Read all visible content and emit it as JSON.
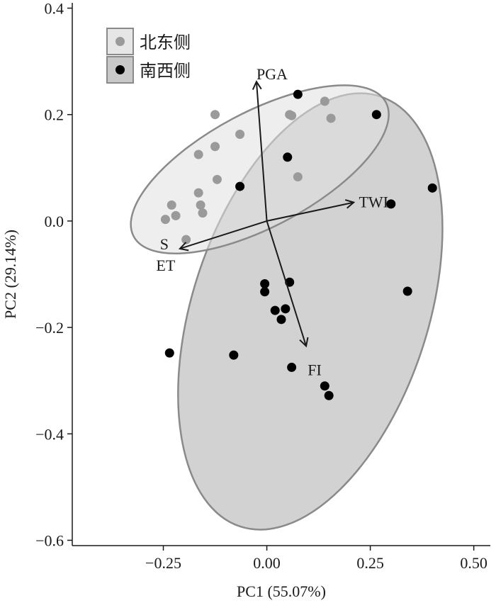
{
  "chart_data": {
    "type": "scatter",
    "title": "",
    "xlabel": "PC1 (55.07%)",
    "ylabel": "PC2 (29.14%)",
    "xlim": [
      -0.47,
      0.54
    ],
    "ylim": [
      -0.61,
      0.41
    ],
    "xticks": [
      -0.25,
      0.0,
      0.25,
      0.5
    ],
    "xtick_labels": [
      "−0.25",
      "0.00",
      "0.25",
      "0.50"
    ],
    "yticks": [
      0.4,
      0.2,
      0.0,
      -0.2,
      -0.4,
      -0.6
    ],
    "ytick_labels": [
      "0.4",
      "0.2",
      "0.0",
      "−0.2",
      "−0.4",
      "−0.6"
    ],
    "grid": false,
    "legend_position": "top-left",
    "series": [
      {
        "name": "北东侧",
        "color": "#9a9a9a",
        "ellipse": {
          "cx": -0.017,
          "cy": 0.097,
          "rx": 0.345,
          "ry": 0.108,
          "angle_deg": -28,
          "fill": "#e0e0e0",
          "stroke": "#8a8a8a"
        },
        "points": [
          [
            -0.125,
            0.2
          ],
          [
            -0.165,
            0.125
          ],
          [
            -0.125,
            0.14
          ],
          [
            -0.065,
            0.163
          ],
          [
            -0.12,
            0.078
          ],
          [
            -0.165,
            0.053
          ],
          [
            -0.16,
            0.03
          ],
          [
            -0.155,
            0.015
          ],
          [
            -0.23,
            0.03
          ],
          [
            -0.22,
            0.01
          ],
          [
            -0.245,
            0.003
          ],
          [
            -0.195,
            -0.035
          ],
          [
            0.055,
            0.2
          ],
          [
            0.06,
            0.198
          ],
          [
            0.14,
            0.225
          ],
          [
            0.155,
            0.193
          ],
          [
            0.075,
            0.083
          ]
        ]
      },
      {
        "name": "南西侧",
        "color": "#000000",
        "ellipse": {
          "cx": 0.105,
          "cy": -0.17,
          "rx": 0.285,
          "ry": 0.425,
          "angle_deg": 18,
          "fill": "#d2d2d2",
          "stroke": "#8a8a8a"
        },
        "points": [
          [
            0.075,
            0.238
          ],
          [
            0.265,
            0.2
          ],
          [
            0.05,
            0.12
          ],
          [
            -0.065,
            0.065
          ],
          [
            0.4,
            0.062
          ],
          [
            0.3,
            0.032
          ],
          [
            -0.005,
            -0.118
          ],
          [
            -0.005,
            -0.133
          ],
          [
            0.055,
            -0.115
          ],
          [
            0.045,
            -0.165
          ],
          [
            0.02,
            -0.168
          ],
          [
            0.035,
            -0.185
          ],
          [
            0.34,
            -0.132
          ],
          [
            -0.235,
            -0.248
          ],
          [
            -0.08,
            -0.252
          ],
          [
            0.06,
            -0.275
          ],
          [
            0.14,
            -0.31
          ],
          [
            0.15,
            -0.328
          ]
        ]
      }
    ],
    "loadings": [
      {
        "label": "PGA",
        "x": -0.025,
        "y": 0.262
      },
      {
        "label": "TWI",
        "x": 0.21,
        "y": 0.035
      },
      {
        "label": "S",
        "x": -0.21,
        "y": -0.052
      },
      {
        "label": "ET",
        "x": -0.21,
        "y": -0.052
      },
      {
        "label": "FI",
        "x": 0.095,
        "y": -0.235
      }
    ],
    "loading_origin": [
      0.0,
      0.0
    ]
  }
}
